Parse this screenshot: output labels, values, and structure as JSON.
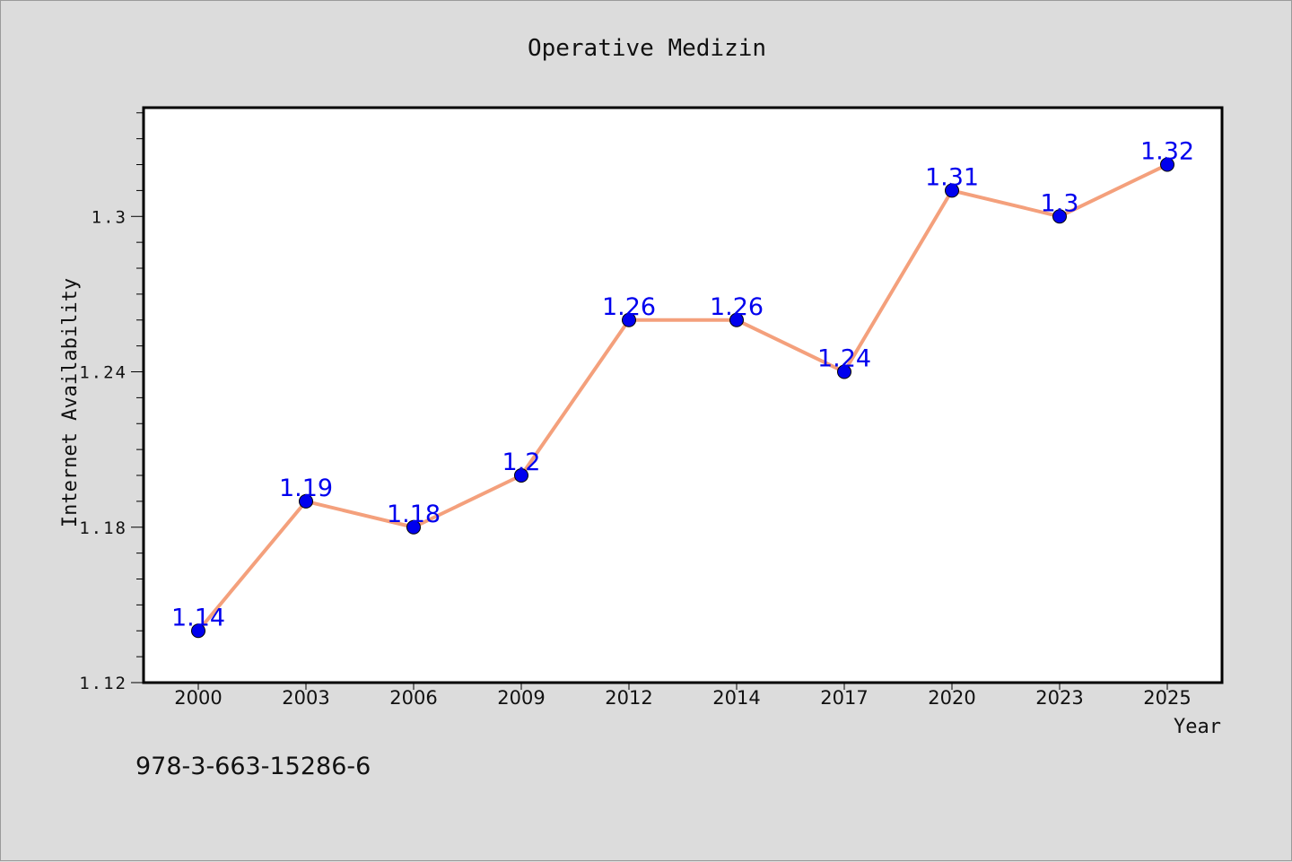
{
  "chart_data": {
    "type": "line",
    "title": "Operative Medizin",
    "xlabel": "Year",
    "ylabel": "Internet Availability",
    "categories": [
      "2000",
      "2003",
      "2006",
      "2009",
      "2012",
      "2014",
      "2017",
      "2020",
      "2023",
      "2025"
    ],
    "series": [
      {
        "values": [
          1.14,
          1.19,
          1.18,
          1.2,
          1.26,
          1.26,
          1.24,
          1.31,
          1.3,
          1.32
        ],
        "labels": [
          "1.14",
          "1.19",
          "1.18",
          "1.2",
          "1.26",
          "1.26",
          "1.24",
          "1.31",
          "1.3",
          "1.32"
        ],
        "line_color": "#f4a07c",
        "marker_color": "#0000ee"
      }
    ],
    "ylim": [
      1.12,
      1.342
    ],
    "y_ticks": [
      "1.12",
      "1.18",
      "1.24",
      "1.3"
    ],
    "y_tick_values": [
      1.12,
      1.18,
      1.24,
      1.3
    ],
    "minor_tick_step": 0.01,
    "grid": false,
    "legend": "none",
    "annotation": "978-3-663-15286-6",
    "colors": {
      "background": "#dcdcdc",
      "plot_background": "#ffffff",
      "label_color": "#0000ee",
      "text": "#111111"
    }
  }
}
